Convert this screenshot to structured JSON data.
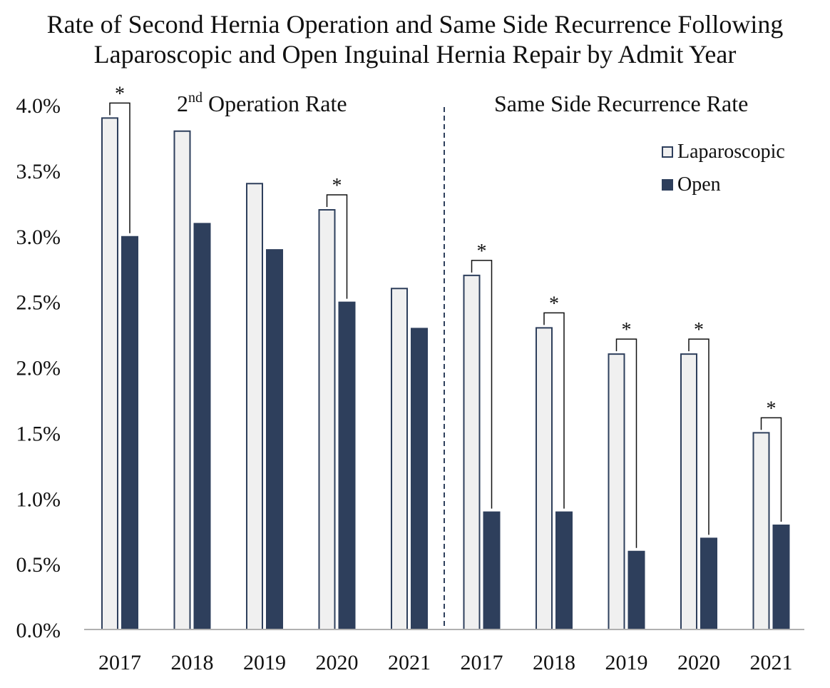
{
  "title_line1": "Rate of Second Hernia Operation and Same Side Recurrence Following",
  "title_line2": "Laparoscopic and Open Inguinal Hernia Repair by Admit Year",
  "panels": [
    {
      "label_main": "2",
      "label_sup": "nd",
      "label_rest": " Operation Rate"
    },
    {
      "label": "Same Side Recurrence Rate"
    }
  ],
  "colors": {
    "laparoscopic_fill": "#f0f0f0",
    "laparoscopic_stroke": "#2e3f5c",
    "open_fill": "#2e3f5c",
    "axis": "#b0b0b0",
    "divider": "#2e3f5c"
  },
  "chart_data": {
    "type": "bar",
    "categories": [
      "2017",
      "2018",
      "2019",
      "2020",
      "2021",
      "2017",
      "2018",
      "2019",
      "2020",
      "2021"
    ],
    "groups": [
      "2nd Operation Rate",
      "2nd Operation Rate",
      "2nd Operation Rate",
      "2nd Operation Rate",
      "2nd Operation Rate",
      "Same Side Recurrence Rate",
      "Same Side Recurrence Rate",
      "Same Side Recurrence Rate",
      "Same Side Recurrence Rate",
      "Same Side Recurrence Rate"
    ],
    "series": [
      {
        "name": "Laparoscopic",
        "values": [
          3.9,
          3.8,
          3.4,
          3.2,
          2.6,
          2.7,
          2.3,
          2.1,
          2.1,
          1.5
        ]
      },
      {
        "name": "Open",
        "values": [
          3.0,
          3.1,
          2.9,
          2.5,
          2.3,
          0.9,
          0.9,
          0.6,
          0.7,
          0.8
        ]
      }
    ],
    "significant": [
      true,
      false,
      false,
      true,
      false,
      true,
      true,
      true,
      true,
      true
    ],
    "significance_marker": "*",
    "ylim": [
      0,
      4.0
    ],
    "yticks": [
      0,
      0.5,
      1.0,
      1.5,
      2.0,
      2.5,
      3.0,
      3.5,
      4.0
    ],
    "ytick_labels": [
      "0.0%",
      "0.5%",
      "1.0%",
      "1.5%",
      "2.0%",
      "2.5%",
      "3.0%",
      "3.5%",
      "4.0%"
    ],
    "unit": "%",
    "legend_position": "top-right",
    "grid": false
  }
}
